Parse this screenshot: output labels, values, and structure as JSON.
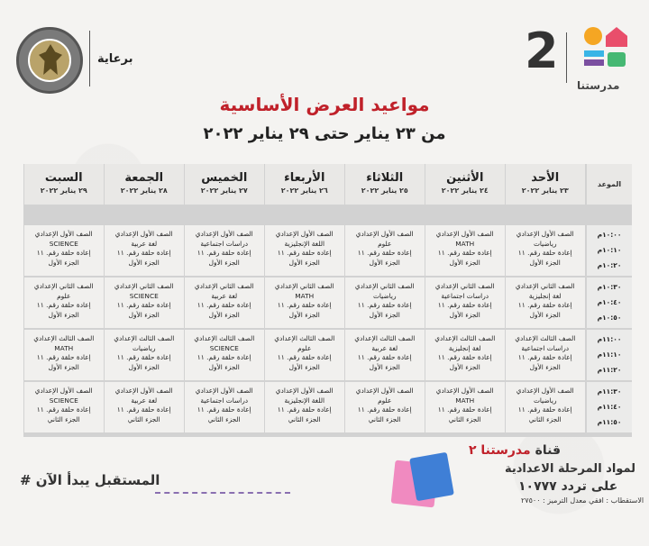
{
  "header": {
    "sponsor": "برعاية",
    "logo_number": "2",
    "logo_name": "مدرستنا",
    "title": "مواعيد العرض الأساسية",
    "subtitle": "من ٢٣ يناير حتى ٢٩ يناير ٢٠٢٢"
  },
  "table": {
    "time_header": "الموعد",
    "days": [
      {
        "name": "الأحد",
        "date": "٢٣ يناير ٢٠٢٢"
      },
      {
        "name": "الأثنين",
        "date": "٢٤ يناير ٢٠٢٢"
      },
      {
        "name": "الثلاثاء",
        "date": "٢٥ يناير ٢٠٢٢"
      },
      {
        "name": "الأربعاء",
        "date": "٢٦ يناير ٢٠٢٢"
      },
      {
        "name": "الخميس",
        "date": "٢٧ يناير ٢٠٢٢"
      },
      {
        "name": "الجمعة",
        "date": "٢٨ يناير ٢٠٢٢"
      },
      {
        "name": "السبت",
        "date": "٢٩ يناير ٢٠٢٢"
      }
    ],
    "times": [
      [
        "١٠:٠٠م",
        "١٠:١٠م",
        "١٠:٢٠م"
      ],
      [
        "١٠:٣٠م",
        "١٠:٤٠م",
        "١٠:٥٠م"
      ],
      [
        "١١:٠٠م",
        "١١:١٠م",
        "١١:٢٠م"
      ],
      [
        "١١:٣٠م",
        "١١:٤٠م",
        "١١:٥٠م"
      ]
    ],
    "rows": [
      [
        [
          "الصف الأول الإعدادي",
          "رياضيات",
          "إعادة حلقة رقم. ١١",
          "الجزء الأول"
        ],
        [
          "الصف الأول الإعدادي",
          "MATH",
          "إعادة حلقة رقم. ١١",
          "الجزء الأول"
        ],
        [
          "الصف الأول الإعدادي",
          "علوم",
          "إعادة حلقة رقم. ١١",
          "الجزء الأول"
        ],
        [
          "الصف الأول الإعدادي",
          "اللغة الإنجليزية",
          "إعادة حلقة رقم. ١١",
          "الجزء الأول"
        ],
        [
          "الصف الأول الإعدادي",
          "دراسات اجتماعية",
          "إعادة حلقة رقم. ١١",
          "الجزء الأول"
        ],
        [
          "الصف الأول الإعدادي",
          "لغة عربية",
          "إعادة حلقة رقم. ١١",
          "الجزء الأول"
        ],
        [
          "الصف الأول الإعدادي",
          "SCIENCE",
          "إعادة حلقة رقم. ١١",
          "الجزء الأول"
        ]
      ],
      [
        [
          "الصف الثاني الإعدادي",
          "لغة إنجليزية",
          "إعادة حلقة رقم. ١١",
          "الجزء الأول"
        ],
        [
          "الصف الثاني الإعدادي",
          "دراسات اجتماعية",
          "إعادة حلقة رقم. ١١",
          "الجزء الأول"
        ],
        [
          "الصف الثاني الإعدادي",
          "رياضيات",
          "إعادة حلقة رقم. ١١",
          "الجزء الأول"
        ],
        [
          "الصف الثاني الإعدادي",
          "MATH",
          "إعادة حلقة رقم. ١١",
          "الجزء الأول"
        ],
        [
          "الصف الثاني الإعدادي",
          "لغة عربية",
          "إعادة حلقة رقم. ١١",
          "الجزء الأول"
        ],
        [
          "الصف الثاني الإعدادي",
          "SCIENCE",
          "إعادة حلقة رقم. ١١",
          "الجزء الأول"
        ],
        [
          "الصف الثاني الإعدادي",
          "علوم",
          "إعادة حلقة رقم. ١١",
          "الجزء الأول"
        ]
      ],
      [
        [
          "الصف الثالث الإعدادي",
          "دراسات اجتماعية",
          "إعادة حلقة رقم. ١١",
          "الجزء الأول"
        ],
        [
          "الصف الثالث الإعدادي",
          "لغة إنجليزية",
          "إعادة حلقة رقم. ١١",
          "الجزء الأول"
        ],
        [
          "الصف الثالث الإعدادي",
          "لغة عربية",
          "إعادة حلقة رقم. ١١",
          "الجزء الأول"
        ],
        [
          "الصف الثالث الإعدادي",
          "علوم",
          "إعادة حلقة رقم. ١١",
          "الجزء الأول"
        ],
        [
          "الصف الثالث الإعدادي",
          "SCIENCE",
          "إعادة حلقة رقم. ١١",
          "الجزء الأول"
        ],
        [
          "الصف الثالث الإعدادي",
          "رياضيات",
          "إعادة حلقة رقم. ١١",
          "الجزء الأول"
        ],
        [
          "الصف الثالث الإعدادي",
          "MATH",
          "إعادة حلقة رقم. ١١",
          "الجزء الأول"
        ]
      ],
      [
        [
          "الصف الأول الإعدادي",
          "رياضيات",
          "إعادة حلقة رقم. ١١",
          "الجزء الثاني"
        ],
        [
          "الصف الأول الإعدادي",
          "MATH",
          "إعادة حلقة رقم. ١١",
          "الجزء الثاني"
        ],
        [
          "الصف الأول الإعدادي",
          "علوم",
          "إعادة حلقة رقم. ١١",
          "الجزء الثاني"
        ],
        [
          "الصف الأول الإعدادي",
          "اللغة الإنجليزية",
          "إعادة حلقة رقم. ١١",
          "الجزء الثاني"
        ],
        [
          "الصف الأول الإعدادي",
          "دراسات اجتماعية",
          "إعادة حلقة رقم. ١١",
          "الجزء الثاني"
        ],
        [
          "الصف الأول الإعدادي",
          "لغة عربية",
          "إعادة حلقة رقم. ١١",
          "الجزء الثاني"
        ],
        [
          "الصف الأول الإعدادي",
          "SCIENCE",
          "إعادة حلقة رقم. ١١",
          "الجزء الثاني"
        ]
      ]
    ]
  },
  "footer": {
    "hashtag": "# المستقبل يبدأ الآن",
    "channel_prefix": "قناة",
    "channel_name": "مدرستنا ٢",
    "channel_line2": "لمواد المرحلة الاعدادية",
    "channel_line3": "على تردد ١٠٧٧٧",
    "channel_line4": "الاستقطاب : افقي معدل الترميز : ٢٧٥٠٠"
  }
}
